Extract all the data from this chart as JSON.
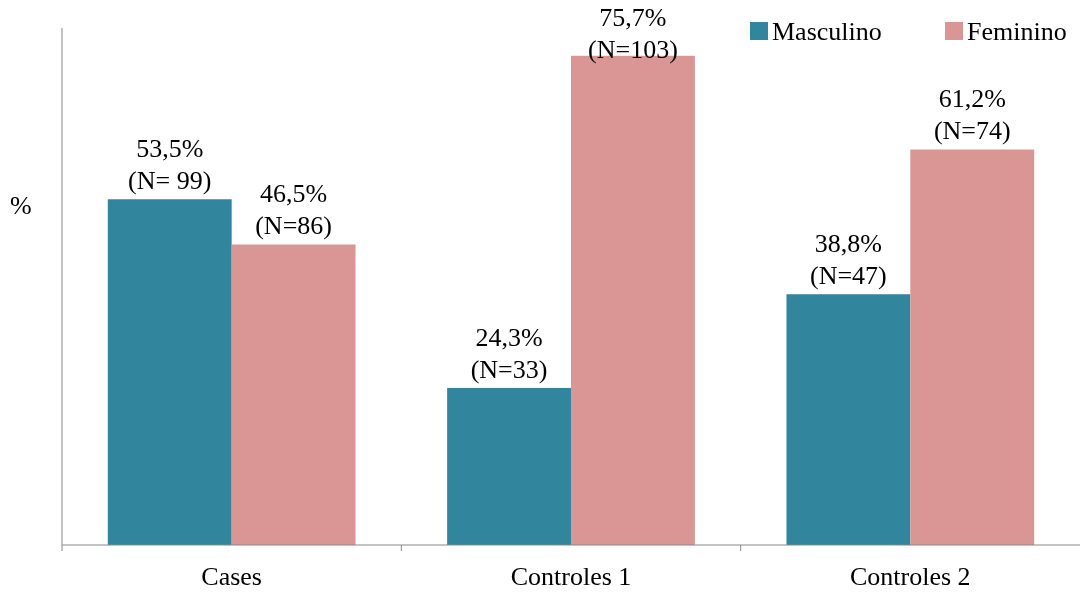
{
  "chart_data": {
    "type": "bar",
    "ylabel": "%",
    "categories": [
      "Cases",
      "Controles 1",
      "Controles 2"
    ],
    "series": [
      {
        "name": "Masculino",
        "color": "#31859c",
        "values": [
          53.5,
          24.3,
          38.8
        ],
        "value_labels": [
          "53,5%\n(N= 99)",
          "24,3%\n(N=33)",
          "38,8%\n(N=47)"
        ]
      },
      {
        "name": "Feminino",
        "color": "#d99694",
        "values": [
          46.5,
          75.7,
          61.2
        ],
        "value_labels": [
          "46,5%\n(N=86)",
          "75,7%\n(N=103)",
          "61,2%\n(N=74)"
        ]
      }
    ],
    "ylim": [
      0,
      80
    ],
    "legend": "top right"
  }
}
